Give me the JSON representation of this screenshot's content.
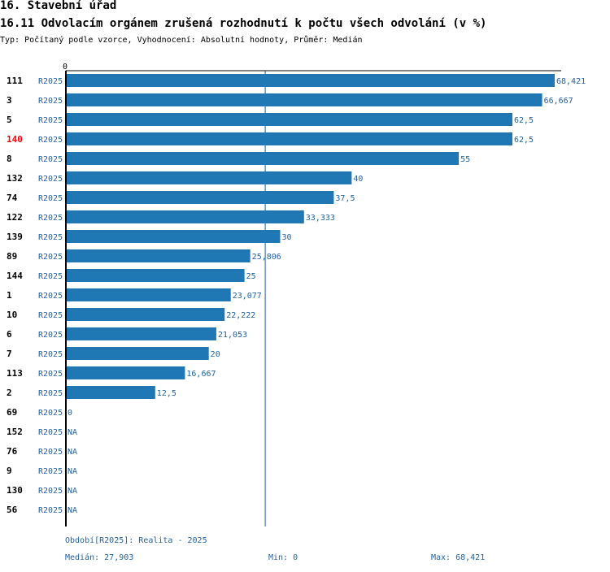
{
  "header": {
    "section": "16. Stavební úřad",
    "indicator": "16.11 Odvolacím orgánem zrušená rozhodnutí k počtu všech odvolání (v %)",
    "type_line": "Typ: Počítaný podle vzorce, Vyhodnocení: Absolutní hodnoty, Průměr: Medián"
  },
  "colors": {
    "bar": "#1f77b4",
    "label": "#1f5f9f",
    "highlight": "#ff0000",
    "axis": "#000000",
    "median_line": "#1f5f9f"
  },
  "chart_data": {
    "type": "bar",
    "orientation": "horizontal",
    "axis_zero_label": "0",
    "median": 27.903,
    "xlim": [
      0,
      68.421
    ],
    "rows": [
      {
        "id": "111",
        "series": "R2025",
        "value": 68.421,
        "label": "68,421",
        "highlight": false
      },
      {
        "id": "3",
        "series": "R2025",
        "value": 66.667,
        "label": "66,667",
        "highlight": false
      },
      {
        "id": "5",
        "series": "R2025",
        "value": 62.5,
        "label": "62,5",
        "highlight": false
      },
      {
        "id": "140",
        "series": "R2025",
        "value": 62.5,
        "label": "62,5",
        "highlight": true
      },
      {
        "id": "8",
        "series": "R2025",
        "value": 55,
        "label": "55",
        "highlight": false
      },
      {
        "id": "132",
        "series": "R2025",
        "value": 40,
        "label": "40",
        "highlight": false
      },
      {
        "id": "74",
        "series": "R2025",
        "value": 37.5,
        "label": "37,5",
        "highlight": false
      },
      {
        "id": "122",
        "series": "R2025",
        "value": 33.333,
        "label": "33,333",
        "highlight": false
      },
      {
        "id": "139",
        "series": "R2025",
        "value": 30,
        "label": "30",
        "highlight": false
      },
      {
        "id": "89",
        "series": "R2025",
        "value": 25.806,
        "label": "25,806",
        "highlight": false
      },
      {
        "id": "144",
        "series": "R2025",
        "value": 25,
        "label": "25",
        "highlight": false
      },
      {
        "id": "1",
        "series": "R2025",
        "value": 23.077,
        "label": "23,077",
        "highlight": false
      },
      {
        "id": "10",
        "series": "R2025",
        "value": 22.222,
        "label": "22,222",
        "highlight": false
      },
      {
        "id": "6",
        "series": "R2025",
        "value": 21.053,
        "label": "21,053",
        "highlight": false
      },
      {
        "id": "7",
        "series": "R2025",
        "value": 20,
        "label": "20",
        "highlight": false
      },
      {
        "id": "113",
        "series": "R2025",
        "value": 16.667,
        "label": "16,667",
        "highlight": false
      },
      {
        "id": "2",
        "series": "R2025",
        "value": 12.5,
        "label": "12,5",
        "highlight": false
      },
      {
        "id": "69",
        "series": "R2025",
        "value": 0,
        "label": "0",
        "highlight": false
      },
      {
        "id": "152",
        "series": "R2025",
        "value": null,
        "label": "NA",
        "highlight": false
      },
      {
        "id": "76",
        "series": "R2025",
        "value": null,
        "label": "NA",
        "highlight": false
      },
      {
        "id": "9",
        "series": "R2025",
        "value": null,
        "label": "NA",
        "highlight": false
      },
      {
        "id": "130",
        "series": "R2025",
        "value": null,
        "label": "NA",
        "highlight": false
      },
      {
        "id": "56",
        "series": "R2025",
        "value": null,
        "label": "NA",
        "highlight": false
      }
    ]
  },
  "footer": {
    "period": "Období[R2025]: Realita - 2025",
    "median": "Medián: 27,903",
    "min": "Min: 0",
    "max": "Max: 68,421"
  }
}
